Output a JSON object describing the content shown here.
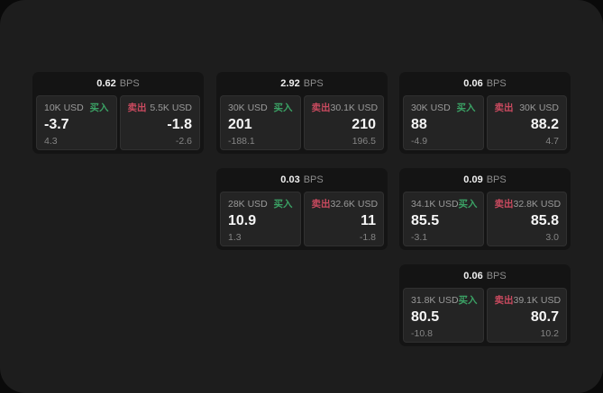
{
  "labels": {
    "bps_unit": "BPS",
    "buy": "买入",
    "sell": "卖出"
  },
  "colors": {
    "buy": "#3ba265",
    "sell": "#c94a5f",
    "panel_bg": "#1d1d1d",
    "card_bg": "#141414",
    "pane_bg": "#242424"
  },
  "cards": [
    {
      "bps": "0.62",
      "row": 0,
      "col": 0,
      "buy": {
        "amount": "10K USD",
        "price": "-3.7",
        "delta": "4.3"
      },
      "sell": {
        "amount": "5.5K USD",
        "price": "-1.8",
        "delta": "-2.6"
      }
    },
    {
      "bps": "2.92",
      "row": 0,
      "col": 1,
      "buy": {
        "amount": "30K USD",
        "price": "201",
        "delta": "-188.1"
      },
      "sell": {
        "amount": "30.1K USD",
        "price": "210",
        "delta": "196.5"
      }
    },
    {
      "bps": "0.06",
      "row": 0,
      "col": 2,
      "buy": {
        "amount": "30K USD",
        "price": "88",
        "delta": "-4.9"
      },
      "sell": {
        "amount": "30K USD",
        "price": "88.2",
        "delta": "4.7"
      }
    },
    {
      "bps": "0.03",
      "row": 1,
      "col": 1,
      "buy": {
        "amount": "28K USD",
        "price": "10.9",
        "delta": "1.3"
      },
      "sell": {
        "amount": "32.6K USD",
        "price": "11",
        "delta": "-1.8"
      }
    },
    {
      "bps": "0.09",
      "row": 1,
      "col": 2,
      "buy": {
        "amount": "34.1K USD",
        "price": "85.5",
        "delta": "-3.1"
      },
      "sell": {
        "amount": "32.8K USD",
        "price": "85.8",
        "delta": "3.0"
      }
    },
    {
      "bps": "0.06",
      "row": 2,
      "col": 2,
      "buy": {
        "amount": "31.8K USD",
        "price": "80.5",
        "delta": "-10.8"
      },
      "sell": {
        "amount": "39.1K USD",
        "price": "80.7",
        "delta": "10.2"
      }
    }
  ]
}
